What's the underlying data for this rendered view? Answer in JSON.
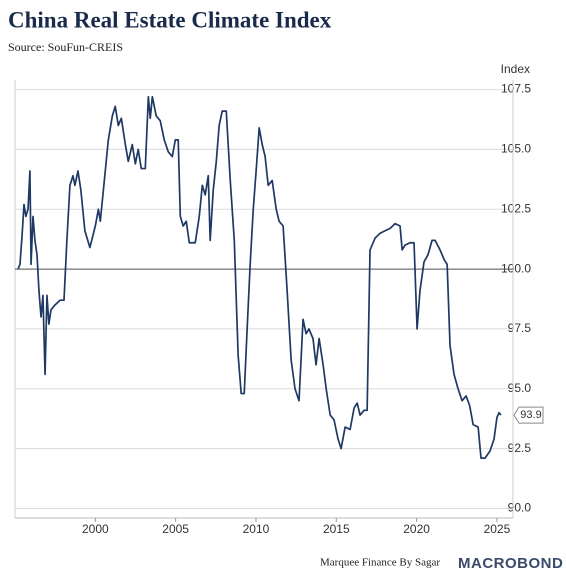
{
  "chart_data": {
    "type": "line",
    "title": "China Real Estate Climate Index",
    "subtitle": "Source: SouFun-CREIS",
    "y_axis_label": "Index",
    "footer": "Marquee Finance By Sagar",
    "brand": "MACROBOND",
    "reference_line": 100,
    "xlim": [
      1995,
      2026
    ],
    "xticks": [
      2000,
      2005,
      2010,
      2015,
      2020,
      2025
    ],
    "ylim": [
      89.6,
      107.9
    ],
    "yticks": [
      {
        "value": 90,
        "label": "90.0"
      },
      92.5,
      {
        "value": 95,
        "label": "95.0"
      },
      97.5,
      {
        "value": 100,
        "label": "100.0"
      },
      102.5,
      {
        "value": 105,
        "label": "105.0"
      },
      107.5
    ],
    "grid": true,
    "series": [
      {
        "name": "Index",
        "color": "#1f3864",
        "x": [
          1995.19,
          1995.31,
          1995.44,
          1995.56,
          1995.68,
          1995.81,
          1995.93,
          1996.0,
          1996.12,
          1996.24,
          1996.37,
          1996.49,
          1996.62,
          1996.74,
          1996.87,
          1996.99,
          1997.11,
          1997.24,
          1997.49,
          1997.8,
          1998.05,
          1998.23,
          1998.42,
          1998.61,
          1998.73,
          1998.92,
          1999.1,
          1999.35,
          1999.66,
          2000.0,
          2000.19,
          2000.31,
          2000.62,
          2000.81,
          2001.06,
          2001.24,
          2001.43,
          2001.62,
          2001.87,
          2002.05,
          2002.3,
          2002.49,
          2002.67,
          2002.86,
          2003.11,
          2003.3,
          2003.42,
          2003.55,
          2003.79,
          2004.04,
          2004.29,
          2004.54,
          2004.79,
          2004.98,
          2005.16,
          2005.29,
          2005.47,
          2005.66,
          2005.85,
          2006.22,
          2006.47,
          2006.66,
          2006.84,
          2007.03,
          2007.15,
          2007.34,
          2007.53,
          2007.71,
          2007.9,
          2008.15,
          2008.4,
          2008.65,
          2008.89,
          2009.08,
          2009.27,
          2009.45,
          2009.64,
          2009.83,
          2010.01,
          2010.2,
          2010.39,
          2010.57,
          2010.76,
          2011.01,
          2011.26,
          2011.44,
          2011.69,
          2011.94,
          2012.19,
          2012.43,
          2012.68,
          2012.93,
          2013.12,
          2013.3,
          2013.55,
          2013.74,
          2013.93,
          2014.18,
          2014.37,
          2014.62,
          2014.86,
          2015.11,
          2015.3,
          2015.55,
          2015.86,
          2016.11,
          2016.3,
          2016.48,
          2016.73,
          2016.92,
          2017.1,
          2017.42,
          2017.73,
          2018.04,
          2018.35,
          2018.66,
          2018.97,
          2019.1,
          2019.28,
          2019.59,
          2019.84,
          2020.03,
          2020.21,
          2020.46,
          2020.71,
          2020.96,
          2021.15,
          2021.46,
          2021.71,
          2021.9,
          2022.08,
          2022.33,
          2022.58,
          2022.83,
          2023.08,
          2023.3,
          2023.52,
          2023.83,
          2024.01,
          2024.26,
          2024.57,
          2024.82,
          2025.0,
          2025.13,
          2025.25
        ],
        "values": [
          100.0,
          100.2,
          101.4,
          102.7,
          102.2,
          102.5,
          104.1,
          100.2,
          102.2,
          101.2,
          100.6,
          99.1,
          98.0,
          98.9,
          95.6,
          98.9,
          97.7,
          98.3,
          98.5,
          98.7,
          98.7,
          101.2,
          103.5,
          103.9,
          103.5,
          104.1,
          103.3,
          101.6,
          100.9,
          101.8,
          102.5,
          102.0,
          104.1,
          105.4,
          106.4,
          106.8,
          106.0,
          106.3,
          105.2,
          104.5,
          105.2,
          104.4,
          105.0,
          104.2,
          104.2,
          107.2,
          106.3,
          107.2,
          106.4,
          106.2,
          105.4,
          104.9,
          104.7,
          105.4,
          105.4,
          102.2,
          101.8,
          102.0,
          101.1,
          101.1,
          102.2,
          103.5,
          103.1,
          103.9,
          101.2,
          103.3,
          104.5,
          106.0,
          106.6,
          106.6,
          103.7,
          101.2,
          96.4,
          94.8,
          94.8,
          97.5,
          100.2,
          102.5,
          104.1,
          105.9,
          105.2,
          104.7,
          103.5,
          103.7,
          102.5,
          102.0,
          101.8,
          99.1,
          96.2,
          95.0,
          94.5,
          97.9,
          97.3,
          97.5,
          97.1,
          96.0,
          97.1,
          96.0,
          95.0,
          93.9,
          93.7,
          92.9,
          92.5,
          93.4,
          93.3,
          94.2,
          94.4,
          93.9,
          94.1,
          94.1,
          100.8,
          101.3,
          101.5,
          101.6,
          101.7,
          101.9,
          101.8,
          100.8,
          101.0,
          101.1,
          101.1,
          97.5,
          99.1,
          100.3,
          100.6,
          101.2,
          101.2,
          100.8,
          100.4,
          100.2,
          96.8,
          95.6,
          95.0,
          94.5,
          94.7,
          94.3,
          93.5,
          93.4,
          92.1,
          92.1,
          92.4,
          92.9,
          93.8,
          94.0,
          93.9
        ]
      }
    ]
  }
}
